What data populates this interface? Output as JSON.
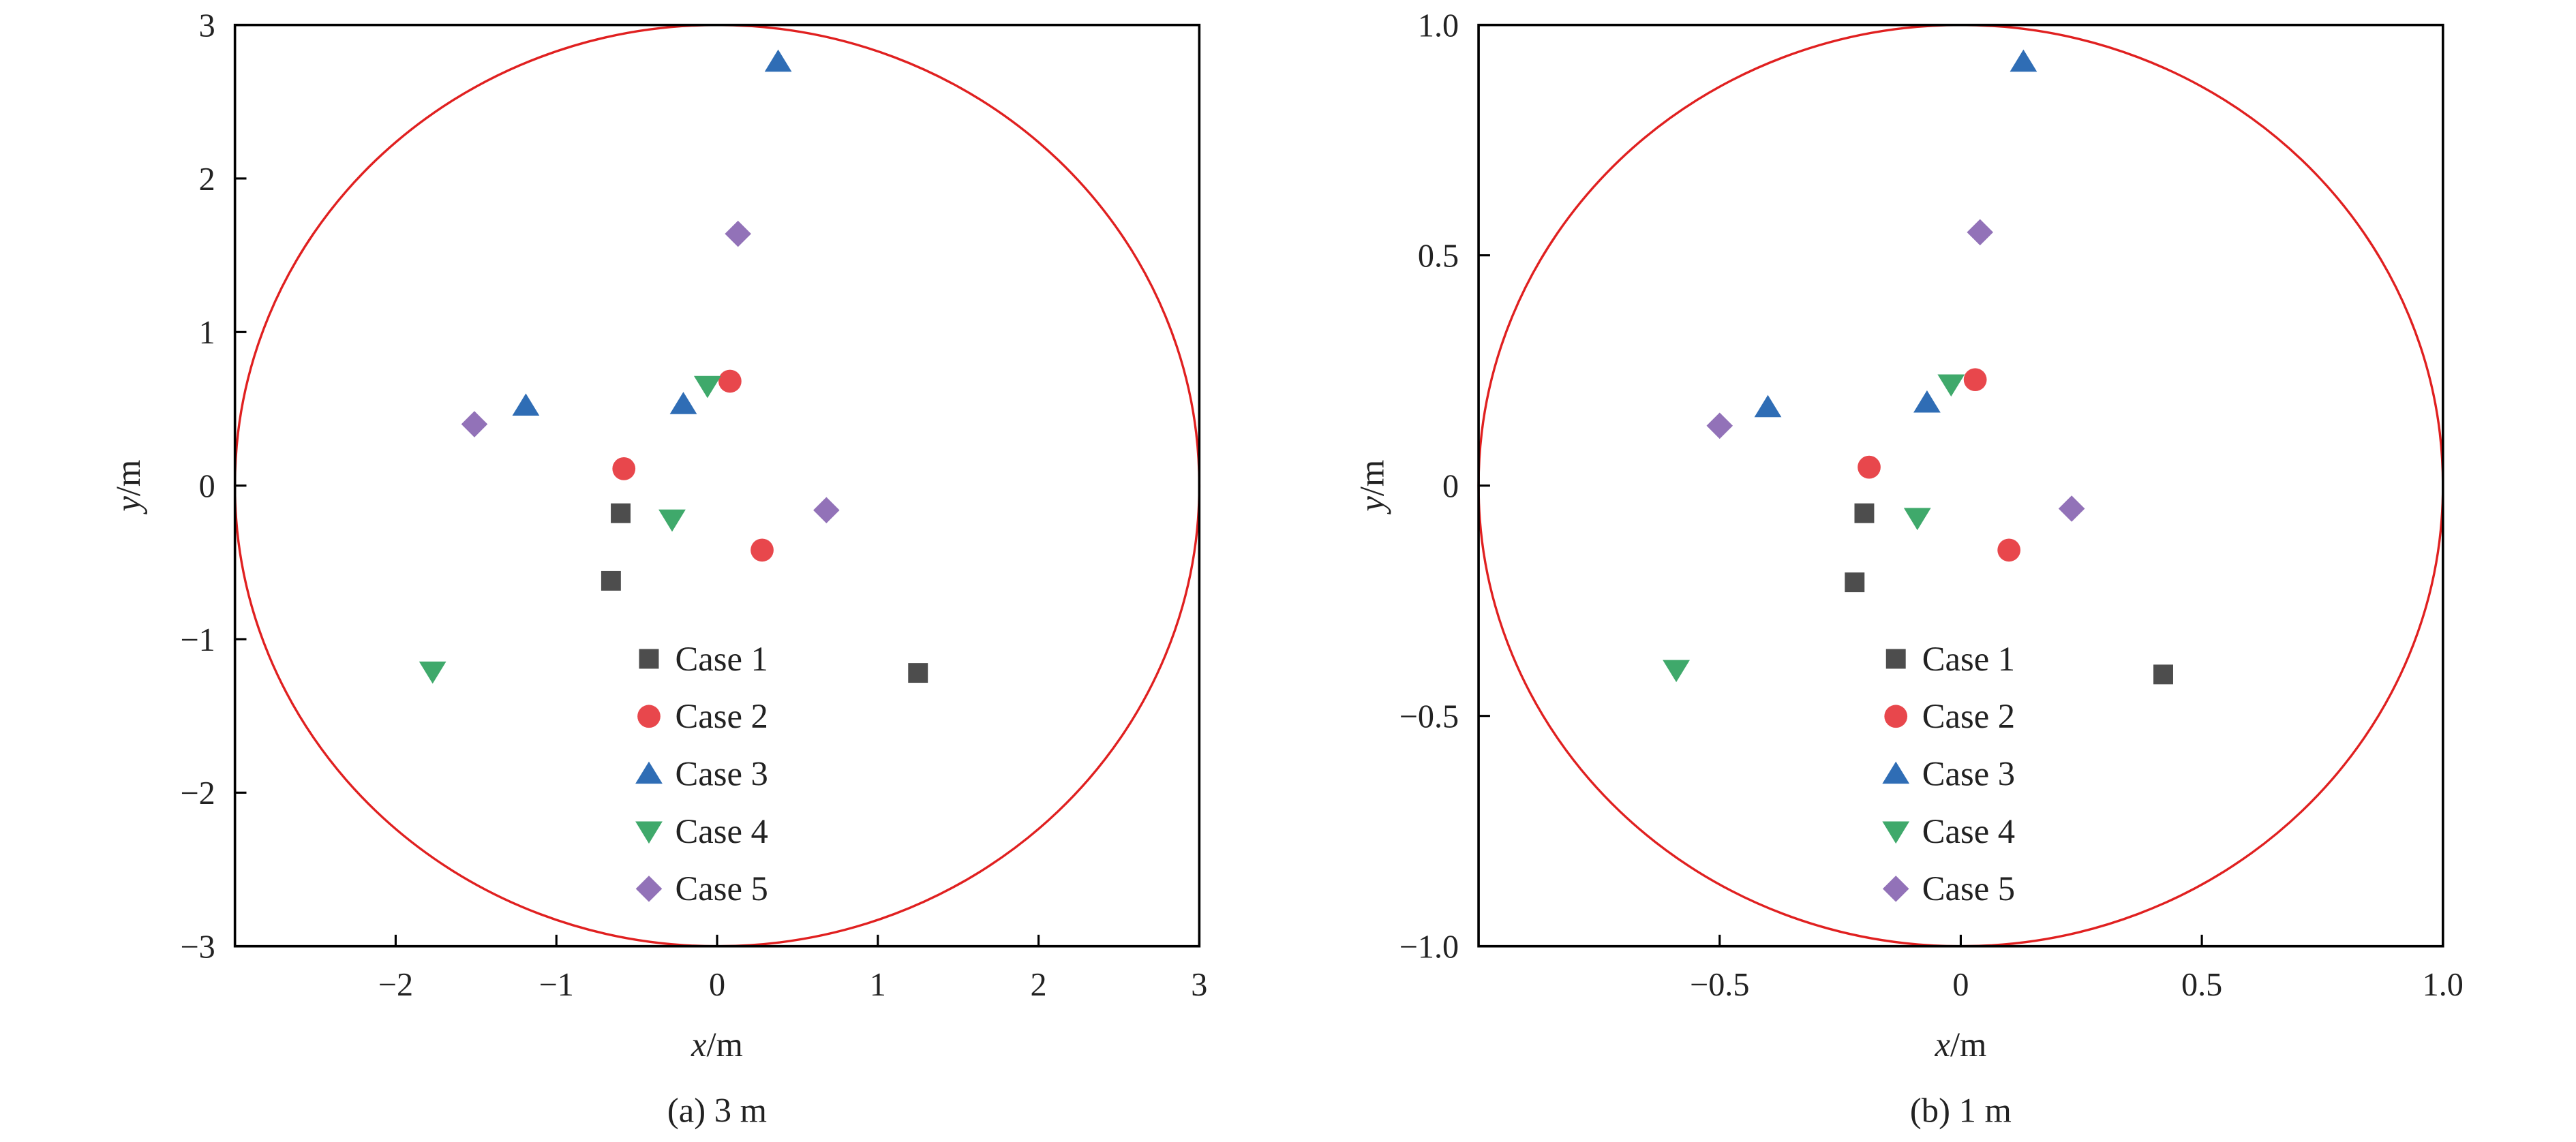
{
  "chart_data": [
    {
      "type": "scatter",
      "caption": "(a) 3 m",
      "xlabel_var": "x",
      "xlabel_unit": "/m",
      "ylabel_var": "y",
      "ylabel_unit": "/m",
      "xlim": [
        -3,
        3
      ],
      "ylim": [
        -3,
        3
      ],
      "xticks": [
        -2,
        -1,
        0,
        1,
        2,
        3
      ],
      "xtick_labels": [
        "−2",
        "−1",
        "0",
        "1",
        "2",
        "3"
      ],
      "yticks": [
        -3,
        -2,
        -1,
        0,
        1,
        2,
        3
      ],
      "ytick_labels": [
        "−3",
        "−2",
        "−1",
        "0",
        "1",
        "2",
        "3"
      ],
      "circle_radius": 3,
      "circle_color": "#e02020",
      "legend_placement": "bottom-center",
      "series": [
        {
          "name": "Case 1",
          "marker": "square",
          "color": "#4d4d4d",
          "points": [
            [
              -0.6,
              -0.18
            ],
            [
              -0.66,
              -0.62
            ],
            [
              1.25,
              -1.22
            ]
          ]
        },
        {
          "name": "Case 2",
          "marker": "circle",
          "color": "#e8474c",
          "points": [
            [
              0.08,
              0.68
            ],
            [
              -0.58,
              0.11
            ],
            [
              0.28,
              -0.42
            ]
          ]
        },
        {
          "name": "Case 3",
          "marker": "triangle-up",
          "color": "#2f6db5",
          "points": [
            [
              0.38,
              2.76
            ],
            [
              -1.19,
              0.52
            ],
            [
              -0.21,
              0.53
            ]
          ]
        },
        {
          "name": "Case 4",
          "marker": "triangle-down",
          "color": "#3fa96b",
          "points": [
            [
              -0.06,
              0.65
            ],
            [
              -0.28,
              -0.22
            ],
            [
              -1.77,
              -1.21
            ]
          ]
        },
        {
          "name": "Case 5",
          "marker": "diamond",
          "color": "#9272b8",
          "points": [
            [
              0.13,
              1.64
            ],
            [
              -1.51,
              0.4
            ],
            [
              0.68,
              -0.16
            ]
          ]
        }
      ]
    },
    {
      "type": "scatter",
      "caption": "(b) 1 m",
      "xlabel_var": "x",
      "xlabel_unit": "/m",
      "ylabel_var": "y",
      "ylabel_unit": "/m",
      "xlim": [
        -1,
        1
      ],
      "ylim": [
        -1,
        1
      ],
      "xticks": [
        -0.5,
        0,
        0.5,
        1.0
      ],
      "xtick_labels": [
        "−0.5",
        "0",
        "0.5",
        "1.0"
      ],
      "yticks": [
        -1,
        -0.5,
        0,
        0.5,
        1
      ],
      "ytick_labels": [
        "−1.0",
        "−0.5",
        "0",
        "0.5",
        "1.0"
      ],
      "circle_radius": 1,
      "circle_color": "#e02020",
      "legend_placement": "bottom-center",
      "series": [
        {
          "name": "Case 1",
          "marker": "square",
          "color": "#4d4d4d",
          "points": [
            [
              -0.2,
              -0.06
            ],
            [
              -0.22,
              -0.21
            ],
            [
              0.42,
              -0.41
            ]
          ]
        },
        {
          "name": "Case 2",
          "marker": "circle",
          "color": "#e8474c",
          "points": [
            [
              0.03,
              0.23
            ],
            [
              -0.19,
              0.04
            ],
            [
              0.1,
              -0.14
            ]
          ]
        },
        {
          "name": "Case 3",
          "marker": "triangle-up",
          "color": "#2f6db5",
          "points": [
            [
              0.13,
              0.92
            ],
            [
              -0.4,
              0.17
            ],
            [
              -0.07,
              0.18
            ]
          ]
        },
        {
          "name": "Case 4",
          "marker": "triangle-down",
          "color": "#3fa96b",
          "points": [
            [
              -0.02,
              0.22
            ],
            [
              -0.09,
              -0.07
            ],
            [
              -0.59,
              -0.4
            ]
          ]
        },
        {
          "name": "Case 5",
          "marker": "diamond",
          "color": "#9272b8",
          "points": [
            [
              0.04,
              0.55
            ],
            [
              -0.5,
              0.13
            ],
            [
              0.23,
              -0.05
            ]
          ]
        }
      ]
    }
  ]
}
